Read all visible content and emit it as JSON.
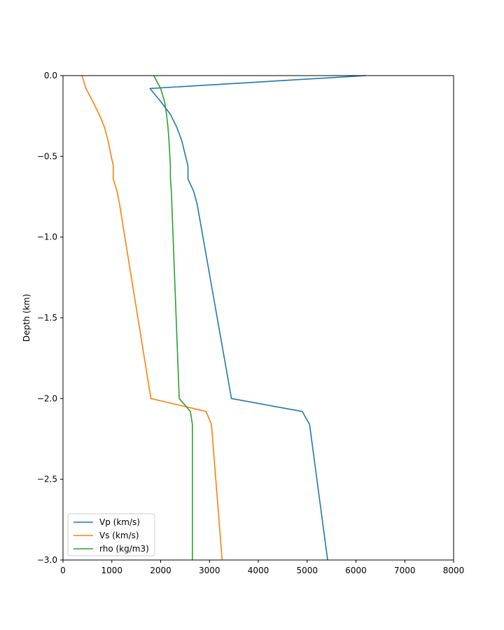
{
  "chart_data": {
    "type": "line",
    "title": "",
    "xlabel": "",
    "ylabel": "Depth (km)",
    "xlim": [
      0,
      8000
    ],
    "ylim": [
      -3.0,
      0.0
    ],
    "xticks": [
      "0",
      "1000",
      "2000",
      "3000",
      "4000",
      "5000",
      "6000",
      "7000",
      "8000"
    ],
    "yticks": [
      "0.0",
      "−0.5",
      "−1.0",
      "−1.5",
      "−2.0",
      "−2.5",
      "−3.0"
    ],
    "grid": false,
    "legend_position": "bottom-left",
    "series": [
      {
        "name": "Vp (km/s)",
        "color": "#1f77b4",
        "points": [
          [
            6200,
            0.0
          ],
          [
            1780,
            -0.08
          ],
          [
            2000,
            -0.16
          ],
          [
            2200,
            -0.24
          ],
          [
            2330,
            -0.32
          ],
          [
            2430,
            -0.4
          ],
          [
            2560,
            -0.56
          ],
          [
            2560,
            -0.64
          ],
          [
            2680,
            -0.72
          ],
          [
            2750,
            -0.8
          ],
          [
            3450,
            -2.0
          ],
          [
            4900,
            -2.08
          ],
          [
            5050,
            -2.16
          ],
          [
            5420,
            -3.0
          ]
        ]
      },
      {
        "name": "Vs (km/s)",
        "color": "#ff7f0e",
        "points": [
          [
            390,
            0.0
          ],
          [
            470,
            -0.08
          ],
          [
            610,
            -0.16
          ],
          [
            740,
            -0.24
          ],
          [
            850,
            -0.32
          ],
          [
            920,
            -0.4
          ],
          [
            1030,
            -0.56
          ],
          [
            1030,
            -0.64
          ],
          [
            1110,
            -0.72
          ],
          [
            1160,
            -0.8
          ],
          [
            1800,
            -2.0
          ],
          [
            2930,
            -2.08
          ],
          [
            3040,
            -2.16
          ],
          [
            3260,
            -3.0
          ]
        ]
      },
      {
        "name": "rho (kg/m3)",
        "color": "#2ca02c",
        "points": [
          [
            1860,
            0.0
          ],
          [
            2000,
            -0.08
          ],
          [
            2080,
            -0.16
          ],
          [
            2120,
            -0.24
          ],
          [
            2150,
            -0.32
          ],
          [
            2170,
            -0.4
          ],
          [
            2200,
            -0.56
          ],
          [
            2200,
            -0.64
          ],
          [
            2220,
            -0.72
          ],
          [
            2230,
            -0.8
          ],
          [
            2380,
            -2.0
          ],
          [
            2610,
            -2.08
          ],
          [
            2650,
            -2.16
          ],
          [
            2650,
            -3.0
          ]
        ]
      }
    ]
  }
}
